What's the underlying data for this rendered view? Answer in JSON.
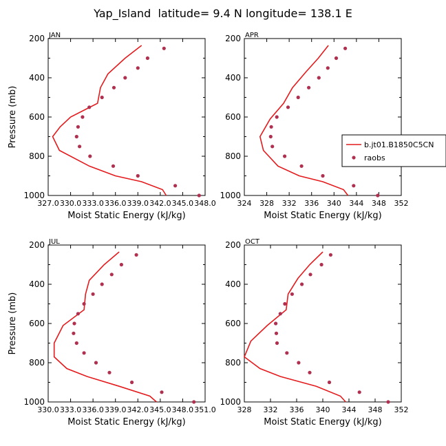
{
  "figure": {
    "title": "Yap_Island  latitude= 9.4 N longitude= 138.1 E",
    "legend": {
      "model_label": "b.jt01.B1850C5CN",
      "obs_label": "raobs"
    },
    "colors": {
      "line": "#e41a1c",
      "dots": "#b03050",
      "axis": "#000000"
    }
  },
  "chart_data": [
    {
      "type": "line",
      "panel_label": "JAN",
      "xlabel": "Moist Static Energy (kJ/kg)",
      "ylabel": "Pressure (mb)",
      "xlim": [
        327.0,
        348.0
      ],
      "ylim": [
        1000,
        200
      ],
      "xticks": [
        327.0,
        330.0,
        333.0,
        336.0,
        339.0,
        342.0,
        345.0,
        348.0
      ],
      "xticklabels": [
        "327.0",
        "330.0",
        "333.0",
        "336.0",
        "339.0",
        "342.0",
        "345.0",
        "348.0"
      ],
      "yticks": [
        200,
        400,
        600,
        800,
        1000
      ],
      "series": [
        {
          "kind": "line",
          "p": [
            235,
            300,
            380,
            450,
            530,
            600,
            650,
            700,
            770,
            850,
            900,
            930,
            970,
            1000
          ],
          "x": [
            339.5,
            337.3,
            335.0,
            334.0,
            333.6,
            330.0,
            328.6,
            327.6,
            328.5,
            332.5,
            336.0,
            339.5,
            342.3,
            342.8
          ]
        },
        {
          "kind": "dots",
          "p": [
            250,
            300,
            350,
            400,
            450,
            500,
            550,
            600,
            650,
            700,
            750,
            800,
            850,
            900,
            950,
            1000
          ],
          "x": [
            342.5,
            340.3,
            339.0,
            337.3,
            335.8,
            334.2,
            332.5,
            331.6,
            331.0,
            330.8,
            331.2,
            332.6,
            335.7,
            339.0,
            344.0,
            347.2
          ]
        }
      ]
    },
    {
      "type": "line",
      "panel_label": "APR",
      "xlabel": "Moist Static Energy (kJ/kg)",
      "ylabel": "",
      "xlim": [
        324,
        352
      ],
      "ylim": [
        1000,
        200
      ],
      "xticks": [
        324,
        328,
        332,
        336,
        340,
        344,
        348,
        352
      ],
      "xticklabels": [
        "324",
        "328",
        "332",
        "336",
        "340",
        "344",
        "348",
        "352"
      ],
      "yticks": [
        200,
        400,
        600,
        800,
        1000
      ],
      "series": [
        {
          "kind": "line",
          "p": [
            235,
            300,
            370,
            450,
            530,
            610,
            700,
            770,
            850,
            900,
            930,
            970,
            1000
          ],
          "x": [
            339.0,
            337.2,
            335.0,
            332.6,
            331.0,
            328.6,
            326.8,
            327.4,
            330.0,
            333.8,
            338.0,
            341.7,
            342.5
          ]
        },
        {
          "kind": "dots",
          "p": [
            250,
            300,
            350,
            400,
            450,
            500,
            550,
            600,
            650,
            700,
            750,
            800,
            850,
            900,
            950,
            1000
          ],
          "x": [
            342.0,
            340.4,
            338.9,
            337.3,
            335.5,
            333.6,
            331.8,
            329.8,
            328.8,
            328.7,
            329.0,
            331.2,
            334.2,
            338.0,
            343.5,
            347.8
          ]
        }
      ]
    },
    {
      "type": "line",
      "panel_label": "JUL",
      "xlabel": "Moist Static Energy (kJ/kg)",
      "ylabel": "Pressure (mb)",
      "xlim": [
        330.0,
        351.0
      ],
      "ylim": [
        1000,
        200
      ],
      "xticks": [
        330.0,
        333.0,
        336.0,
        339.0,
        342.0,
        345.0,
        348.0,
        351.0
      ],
      "xticklabels": [
        "330.0",
        "333.0",
        "336.0",
        "339.0",
        "342.0",
        "345.0",
        "348.0",
        "351.0"
      ],
      "yticks": [
        200,
        400,
        600,
        800,
        1000
      ],
      "series": [
        {
          "kind": "line",
          "p": [
            235,
            300,
            380,
            450,
            530,
            610,
            700,
            770,
            830,
            870,
            920,
            970,
            1000
          ],
          "x": [
            339.5,
            337.5,
            335.5,
            335.0,
            334.8,
            332.0,
            330.8,
            330.8,
            332.5,
            335.2,
            339.5,
            343.6,
            344.5
          ]
        },
        {
          "kind": "dots",
          "p": [
            250,
            300,
            350,
            400,
            450,
            500,
            550,
            600,
            650,
            700,
            750,
            800,
            850,
            900,
            950,
            1000
          ],
          "x": [
            341.8,
            339.8,
            338.5,
            337.2,
            336.0,
            334.8,
            334.0,
            333.5,
            333.4,
            333.8,
            334.8,
            336.4,
            338.2,
            341.2,
            345.2,
            349.5
          ]
        }
      ]
    },
    {
      "type": "line",
      "panel_label": "OCT",
      "xlabel": "Moist Static Energy (kJ/kg)",
      "ylabel": "",
      "xlim": [
        328,
        352
      ],
      "ylim": [
        1000,
        200
      ],
      "xticks": [
        328,
        332,
        336,
        340,
        344,
        348,
        352
      ],
      "xticklabels": [
        "328",
        "332",
        "336",
        "340",
        "344",
        "348",
        "352"
      ],
      "yticks": [
        200,
        400,
        600,
        800,
        1000
      ],
      "series": [
        {
          "kind": "line",
          "p": [
            235,
            300,
            370,
            450,
            530,
            610,
            690,
            770,
            830,
            870,
            920,
            970,
            1000
          ],
          "x": [
            340.0,
            338.0,
            336.2,
            334.7,
            334.4,
            331.5,
            329.0,
            328.0,
            330.4,
            333.5,
            339.0,
            342.7,
            343.5
          ]
        },
        {
          "kind": "dots",
          "p": [
            250,
            300,
            350,
            400,
            450,
            500,
            550,
            600,
            650,
            700,
            750,
            800,
            850,
            900,
            950,
            1000
          ],
          "x": [
            341.2,
            339.8,
            338.1,
            336.8,
            335.3,
            334.2,
            333.5,
            332.8,
            332.9,
            333.0,
            334.5,
            336.3,
            338.0,
            341.0,
            345.6,
            350.0
          ]
        }
      ]
    }
  ]
}
